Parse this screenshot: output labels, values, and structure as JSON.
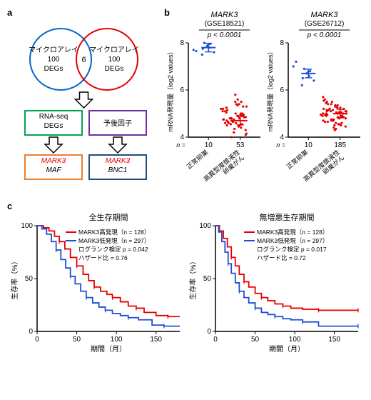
{
  "panel_a": {
    "label": "a",
    "venn": {
      "left": {
        "text1": "マイクロアレイ",
        "text2": "100",
        "text3": "DEGs",
        "color": "#0066cc"
      },
      "right": {
        "text1": "マイクロアレイ",
        "text2": "100",
        "text3": "DEGs",
        "color": "#e60000"
      },
      "overlap": "6"
    },
    "boxes": [
      {
        "text": "RNA-seq\nDEGs",
        "border": "#00a651",
        "fill": "#ffffff",
        "textcolor": "#000"
      },
      {
        "text": "予後因子",
        "border": "#7030a0",
        "fill": "#ffffff",
        "textcolor": "#000"
      },
      {
        "text": "MARK3\nMAF",
        "border": "#ed7d31",
        "fill": "#ffffff",
        "line1color": "#e60000",
        "line2color": "#000"
      },
      {
        "text": "MARK3\nBNC1",
        "border": "#1f4e79",
        "fill": "#ffffff",
        "line1color": "#e60000",
        "line2color": "#000"
      }
    ]
  },
  "panel_b": {
    "label": "b",
    "ylabel": "mRNA発現量（log2 values）",
    "charts": [
      {
        "title": "MARK3",
        "subtitle": "(GSE18521)",
        "pvalue": "p < 0.0001",
        "categories": [
          "正常卵巣",
          "高異型度漿液性\n卵巣がん"
        ],
        "n_label": "n =",
        "n": [
          10,
          53
        ],
        "ylim": [
          4,
          8
        ],
        "yticks": [
          4,
          6,
          8
        ],
        "series": [
          {
            "color": "#1f4ed8",
            "mean": 7.8,
            "points": [
              7.5,
              7.6,
              7.75,
              7.8,
              7.85,
              7.9,
              7.95,
              8.0,
              7.7,
              7.65
            ]
          },
          {
            "color": "#e60000",
            "mean": 4.7,
            "points": [
              4.2,
              4.3,
              4.35,
              4.4,
              4.45,
              4.5,
              4.55,
              4.6,
              4.6,
              4.65,
              4.7,
              4.7,
              4.75,
              4.75,
              4.8,
              4.8,
              4.85,
              4.85,
              4.9,
              4.9,
              4.95,
              5.0,
              5.0,
              5.05,
              5.1,
              5.1,
              5.15,
              5.2,
              5.2,
              5.25,
              5.3,
              5.3,
              5.35,
              5.4,
              5.4,
              5.5,
              4.15,
              4.1,
              4.5,
              4.55,
              4.6,
              4.65,
              4.7,
              4.75,
              4.8,
              4.85,
              4.9,
              4.95,
              5.0,
              5.5,
              5.6,
              5.8,
              4.0
            ]
          }
        ]
      },
      {
        "title": "MARK3",
        "subtitle": "(GSE26712)",
        "pvalue": "p < 0.0001",
        "categories": [
          "正常卵巣",
          "高異型度漿液性\n卵巣がん"
        ],
        "n_label": "n =",
        "n": [
          10,
          185
        ],
        "ylim": [
          4,
          8
        ],
        "yticks": [
          4,
          6,
          8
        ],
        "series": [
          {
            "color": "#1f4ed8",
            "mean": 6.7,
            "points": [
              6.2,
              6.4,
              6.5,
              6.6,
              6.7,
              6.75,
              6.8,
              6.9,
              7.0,
              7.2
            ]
          },
          {
            "color": "#e60000",
            "mean": 5.0,
            "points": [
              4.4,
              4.45,
              4.5,
              4.5,
              4.55,
              4.55,
              4.6,
              4.6,
              4.65,
              4.65,
              4.7,
              4.7,
              4.7,
              4.75,
              4.75,
              4.8,
              4.8,
              4.8,
              4.85,
              4.85,
              4.85,
              4.9,
              4.9,
              4.9,
              4.9,
              4.95,
              4.95,
              4.95,
              5.0,
              5.0,
              5.0,
              5.0,
              5.0,
              5.05,
              5.05,
              5.05,
              5.1,
              5.1,
              5.1,
              5.1,
              5.15,
              5.15,
              5.15,
              5.2,
              5.2,
              5.2,
              5.25,
              5.25,
              5.3,
              5.3,
              5.35,
              5.35,
              5.4,
              5.4,
              5.45,
              5.5,
              5.5,
              5.55,
              5.6,
              5.7,
              4.35,
              4.3
            ]
          }
        ]
      }
    ]
  },
  "panel_c": {
    "label": "c",
    "xlabel": "期間（月）",
    "ylabel": "生存率（%）",
    "charts": [
      {
        "title": "全生存期間",
        "xlim": [
          0,
          180
        ],
        "xticks": [
          0,
          50,
          100,
          150
        ],
        "ylim": [
          0,
          100
        ],
        "yticks": [
          0,
          50,
          100
        ],
        "legend": [
          {
            "text": "MARK3高発現（n = 128）",
            "color": "#e60000"
          },
          {
            "text": "MARK3低発現（n = 297）",
            "color": "#1f4ed8"
          },
          {
            "text": "ログランク検定 p = 0.042",
            "color": "#000"
          },
          {
            "text": "ハザード比 = 0.76",
            "color": "#000"
          }
        ],
        "curves": [
          {
            "color": "#e60000",
            "points": [
              [
                0,
                100
              ],
              [
                8,
                98
              ],
              [
                15,
                95
              ],
              [
                22,
                90
              ],
              [
                28,
                85
              ],
              [
                35,
                78
              ],
              [
                42,
                70
              ],
              [
                50,
                62
              ],
              [
                58,
                54
              ],
              [
                65,
                48
              ],
              [
                72,
                42
              ],
              [
                80,
                38
              ],
              [
                88,
                35
              ],
              [
                95,
                32
              ],
              [
                105,
                28
              ],
              [
                115,
                24
              ],
              [
                125,
                22
              ],
              [
                135,
                18
              ],
              [
                150,
                15
              ],
              [
                165,
                14
              ],
              [
                180,
                14
              ]
            ]
          },
          {
            "color": "#1f4ed8",
            "points": [
              [
                0,
                100
              ],
              [
                6,
                97
              ],
              [
                12,
                92
              ],
              [
                18,
                85
              ],
              [
                24,
                77
              ],
              [
                30,
                68
              ],
              [
                36,
                60
              ],
              [
                42,
                52
              ],
              [
                48,
                45
              ],
              [
                55,
                38
              ],
              [
                62,
                32
              ],
              [
                70,
                27
              ],
              [
                78,
                23
              ],
              [
                86,
                20
              ],
              [
                95,
                17
              ],
              [
                105,
                15
              ],
              [
                115,
                13
              ],
              [
                128,
                11
              ],
              [
                145,
                6
              ],
              [
                160,
                5
              ],
              [
                180,
                5
              ]
            ]
          }
        ]
      },
      {
        "title": "無増悪生存期間",
        "xlim": [
          0,
          180
        ],
        "xticks": [
          0,
          50,
          100,
          150
        ],
        "ylim": [
          0,
          100
        ],
        "yticks": [
          0,
          50,
          100
        ],
        "legend": [
          {
            "text": "MARK3高発現（n = 128）",
            "color": "#e60000"
          },
          {
            "text": "MARK3低発現（n = 297）",
            "color": "#1f4ed8"
          },
          {
            "text": "ログランク検定 p = 0.017",
            "color": "#000"
          },
          {
            "text": "ハザード比 = 0.72",
            "color": "#000"
          }
        ],
        "curves": [
          {
            "color": "#e60000",
            "points": [
              [
                0,
                100
              ],
              [
                5,
                95
              ],
              [
                10,
                88
              ],
              [
                15,
                80
              ],
              [
                20,
                70
              ],
              [
                25,
                62
              ],
              [
                30,
                54
              ],
              [
                36,
                47
              ],
              [
                42,
                42
              ],
              [
                50,
                36
              ],
              [
                58,
                32
              ],
              [
                66,
                29
              ],
              [
                75,
                26
              ],
              [
                85,
                24
              ],
              [
                95,
                22
              ],
              [
                110,
                21
              ],
              [
                130,
                20
              ],
              [
                150,
                20
              ],
              [
                170,
                20
              ],
              [
                180,
                20
              ]
            ]
          },
          {
            "color": "#1f4ed8",
            "points": [
              [
                0,
                100
              ],
              [
                4,
                94
              ],
              [
                8,
                85
              ],
              [
                12,
                75
              ],
              [
                16,
                64
              ],
              [
                20,
                55
              ],
              [
                25,
                46
              ],
              [
                30,
                38
              ],
              [
                36,
                32
              ],
              [
                42,
                27
              ],
              [
                50,
                22
              ],
              [
                58,
                18
              ],
              [
                66,
                16
              ],
              [
                75,
                14
              ],
              [
                85,
                12
              ],
              [
                95,
                11
              ],
              [
                110,
                9
              ],
              [
                130,
                5
              ],
              [
                150,
                5
              ],
              [
                180,
                5
              ]
            ]
          }
        ]
      }
    ]
  }
}
